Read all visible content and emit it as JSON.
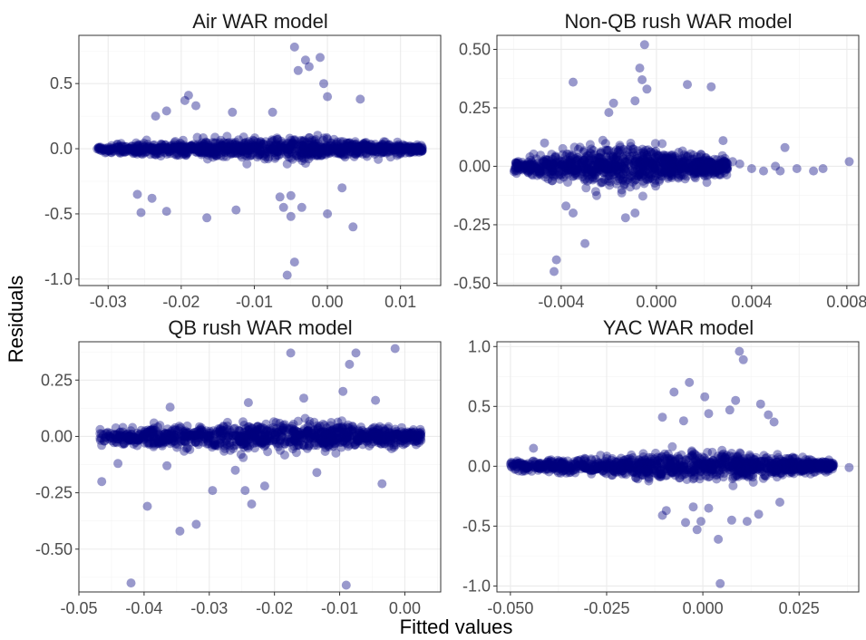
{
  "figure": {
    "xlabel": "Fitted values",
    "ylabel": "Residuals"
  },
  "colors": {
    "point": "#00007f",
    "grid": "#ebebeb",
    "border": "#333333",
    "text": "#4d4d4d"
  },
  "chart_data": [
    {
      "type": "scatter",
      "title": "Air WAR model",
      "xlim": [
        -0.034,
        0.0155
      ],
      "ylim": [
        -1.05,
        0.87
      ],
      "xticks": [
        -0.03,
        -0.02,
        -0.01,
        0.0,
        0.01
      ],
      "xtick_labels": [
        "-0.03",
        "-0.02",
        "-0.01",
        "0.00",
        "0.01"
      ],
      "yticks": [
        -1.0,
        -0.5,
        0.0,
        0.5
      ],
      "ytick_labels": [
        "-1.0",
        "-0.5",
        "0.0",
        "0.5"
      ],
      "grid": true,
      "cloud": {
        "x_min": -0.0315,
        "x_max": 0.013,
        "center_x": -0.004,
        "spread_at_center": 0.07,
        "spread_at_edge": 0.022,
        "count": 1100
      },
      "outliers": [
        [
          -0.0045,
          0.78
        ],
        [
          -0.003,
          0.68
        ],
        [
          -0.0025,
          0.63
        ],
        [
          -0.001,
          0.7
        ],
        [
          -0.004,
          0.6
        ],
        [
          0.0,
          0.4
        ],
        [
          -0.0005,
          0.5
        ],
        [
          0.0045,
          0.38
        ],
        [
          -0.019,
          0.41
        ],
        [
          -0.0195,
          0.37
        ],
        [
          -0.022,
          0.29
        ],
        [
          -0.018,
          0.33
        ],
        [
          -0.0235,
          0.25
        ],
        [
          -0.005,
          -0.36
        ],
        [
          -0.0035,
          -0.45
        ],
        [
          -0.005,
          -0.52
        ],
        [
          -0.0045,
          -0.87
        ],
        [
          -0.0055,
          -0.97
        ],
        [
          0.0,
          -0.5
        ],
        [
          0.0035,
          -0.6
        ],
        [
          -0.022,
          -0.48
        ],
        [
          -0.0165,
          -0.53
        ],
        [
          -0.026,
          -0.35
        ],
        [
          -0.0255,
          -0.49
        ],
        [
          -0.024,
          -0.38
        ],
        [
          -0.0125,
          -0.47
        ],
        [
          -0.0065,
          -0.37
        ],
        [
          -0.006,
          -0.45
        ],
        [
          0.002,
          -0.3
        ],
        [
          -0.013,
          0.28
        ],
        [
          -0.0075,
          0.28
        ]
      ]
    },
    {
      "type": "scatter",
      "title": "Non-QB rush WAR model",
      "xlim": [
        -0.0067,
        0.0085
      ],
      "ylim": [
        -0.51,
        0.56
      ],
      "xticks": [
        -0.004,
        0.0,
        0.004,
        0.008
      ],
      "xtick_labels": [
        "-0.004",
        "0.000",
        "0.004",
        "0.008"
      ],
      "yticks": [
        -0.5,
        -0.25,
        0.0,
        0.25,
        0.5
      ],
      "ytick_labels": [
        "-0.50",
        "-0.25",
        "0.00",
        "0.25",
        "0.50"
      ],
      "grid": true,
      "cloud": {
        "x_min": -0.006,
        "x_max": 0.003,
        "center_x": -0.0013,
        "spread_at_center": 0.08,
        "spread_at_edge": 0.025,
        "count": 1000
      },
      "outliers": [
        [
          -0.0005,
          0.52
        ],
        [
          -0.0007,
          0.42
        ],
        [
          -0.0006,
          0.37
        ],
        [
          -0.0004,
          0.33
        ],
        [
          -0.0009,
          0.28
        ],
        [
          0.0013,
          0.35
        ],
        [
          0.0023,
          0.34
        ],
        [
          -0.0035,
          0.36
        ],
        [
          -0.0018,
          0.27
        ],
        [
          -0.002,
          0.23
        ],
        [
          -0.0042,
          -0.4
        ],
        [
          -0.0043,
          -0.45
        ],
        [
          -0.003,
          -0.33
        ],
        [
          -0.0035,
          -0.2
        ],
        [
          -0.0038,
          -0.17
        ],
        [
          -0.0013,
          -0.22
        ],
        [
          -0.0009,
          -0.2
        ],
        [
          0.0032,
          0.02
        ],
        [
          0.0035,
          0.01
        ],
        [
          0.004,
          -0.01
        ],
        [
          0.0045,
          -0.02
        ],
        [
          0.005,
          0.0
        ],
        [
          0.0052,
          -0.02
        ],
        [
          0.0054,
          0.08
        ],
        [
          0.0059,
          -0.01
        ],
        [
          0.0066,
          -0.02
        ],
        [
          0.007,
          -0.01
        ],
        [
          0.0081,
          0.02
        ],
        [
          -0.0047,
          0.1
        ],
        [
          0.0028,
          0.11
        ]
      ]
    },
    {
      "type": "scatter",
      "title": "QB rush WAR model",
      "xlim": [
        -0.05,
        0.0055
      ],
      "ylim": [
        -0.69,
        0.42
      ],
      "xticks": [
        -0.05,
        -0.04,
        -0.03,
        -0.02,
        -0.01,
        0.0
      ],
      "xtick_labels": [
        "-0.05",
        "-0.04",
        "-0.03",
        "-0.02",
        "-0.01",
        "0.00"
      ],
      "yticks": [
        -0.5,
        -0.25,
        0.0,
        0.25
      ],
      "ytick_labels": [
        "-0.50",
        "-0.25",
        "0.00",
        "0.25"
      ],
      "grid": true,
      "cloud": {
        "x_min": -0.047,
        "x_max": 0.0025,
        "center_x": -0.017,
        "spread_at_center": 0.055,
        "spread_at_edge": 0.025,
        "count": 1100
      },
      "outliers": [
        [
          -0.0175,
          0.37
        ],
        [
          -0.0075,
          0.37
        ],
        [
          -0.0085,
          0.32
        ],
        [
          -0.0015,
          0.39
        ],
        [
          -0.0095,
          0.2
        ],
        [
          -0.042,
          -0.65
        ],
        [
          -0.009,
          -0.66
        ],
        [
          -0.0345,
          -0.42
        ],
        [
          -0.032,
          -0.39
        ],
        [
          -0.0395,
          -0.31
        ],
        [
          -0.0295,
          -0.24
        ],
        [
          -0.0245,
          -0.24
        ],
        [
          -0.0235,
          -0.3
        ],
        [
          -0.0465,
          -0.2
        ],
        [
          -0.0035,
          -0.21
        ],
        [
          -0.0215,
          -0.22
        ],
        [
          -0.0135,
          -0.16
        ],
        [
          -0.0045,
          0.16
        ],
        [
          -0.0155,
          0.17
        ],
        [
          -0.024,
          0.15
        ],
        [
          -0.036,
          0.13
        ],
        [
          -0.0365,
          -0.13
        ],
        [
          -0.026,
          -0.15
        ],
        [
          -0.044,
          -0.12
        ],
        [
          0.0025,
          0.02
        ]
      ]
    },
    {
      "type": "scatter",
      "title": "YAC WAR model",
      "xlim": [
        -0.0535,
        0.0405
      ],
      "ylim": [
        -1.05,
        1.04
      ],
      "xticks": [
        -0.05,
        -0.025,
        0.0,
        0.025
      ],
      "xtick_labels": [
        "-0.050",
        "-0.025",
        "0.000",
        "0.025"
      ],
      "yticks": [
        -1.0,
        -0.5,
        0.0,
        0.5,
        1.0
      ],
      "ytick_labels": [
        "-1.0",
        "-0.5",
        "0.0",
        "0.5",
        "1.0"
      ],
      "grid": true,
      "cloud": {
        "x_min": -0.05,
        "x_max": 0.034,
        "center_x": 0.004,
        "spread_at_center": 0.1,
        "spread_at_edge": 0.025,
        "count": 1200
      },
      "outliers": [
        [
          0.0095,
          0.96
        ],
        [
          0.0105,
          0.89
        ],
        [
          -0.0035,
          0.7
        ],
        [
          0.0005,
          0.58
        ],
        [
          0.0085,
          0.55
        ],
        [
          0.0015,
          0.44
        ],
        [
          -0.0105,
          0.41
        ],
        [
          -0.0075,
          0.62
        ],
        [
          0.015,
          0.52
        ],
        [
          0.017,
          0.43
        ],
        [
          0.0185,
          0.37
        ],
        [
          -0.044,
          0.15
        ],
        [
          -0.0485,
          0.03
        ],
        [
          -0.05,
          0.02
        ],
        [
          0.038,
          -0.01
        ],
        [
          0.0045,
          -0.98
        ],
        [
          0.004,
          -0.61
        ],
        [
          -0.0005,
          -0.46
        ],
        [
          -0.0015,
          -0.53
        ],
        [
          -0.0045,
          -0.47
        ],
        [
          -0.0095,
          -0.37
        ],
        [
          -0.0105,
          -0.41
        ],
        [
          0.0075,
          -0.45
        ],
        [
          0.0115,
          -0.46
        ],
        [
          0.0145,
          -0.4
        ],
        [
          0.0015,
          -0.35
        ],
        [
          -0.0025,
          -0.34
        ],
        [
          0.02,
          -0.3
        ],
        [
          -0.005,
          0.38
        ],
        [
          0.007,
          0.47
        ]
      ]
    }
  ]
}
